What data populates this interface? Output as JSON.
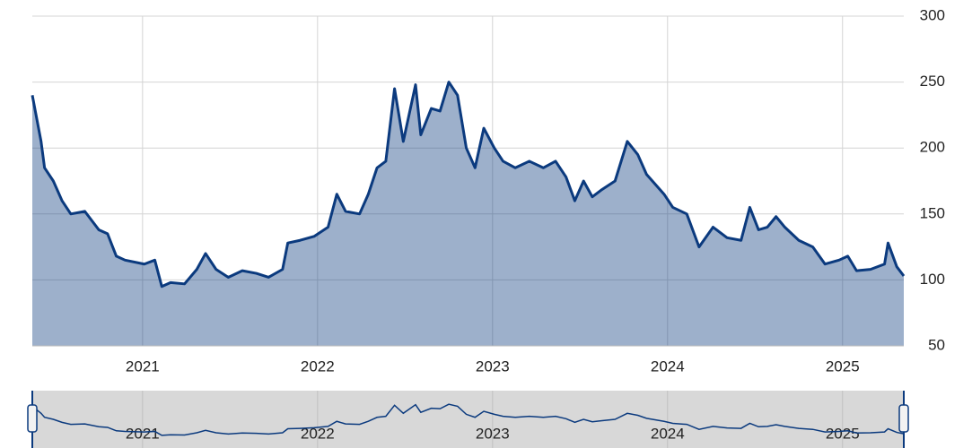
{
  "chart_data": {
    "type": "area",
    "x": [
      2020.37,
      2020.42,
      2020.44,
      2020.49,
      2020.54,
      2020.59,
      2020.67,
      2020.75,
      2020.8,
      2020.85,
      2020.9,
      2021.01,
      2021.07,
      2021.11,
      2021.16,
      2021.24,
      2021.31,
      2021.36,
      2021.42,
      2021.49,
      2021.57,
      2021.65,
      2021.72,
      2021.8,
      2021.83,
      2021.9,
      2021.98,
      2022.06,
      2022.11,
      2022.16,
      2022.24,
      2022.29,
      2022.34,
      2022.39,
      2022.44,
      2022.49,
      2022.56,
      2022.59,
      2022.65,
      2022.7,
      2022.75,
      2022.8,
      2022.85,
      2022.9,
      2022.95,
      2023.01,
      2023.06,
      2023.13,
      2023.21,
      2023.29,
      2023.36,
      2023.42,
      2023.47,
      2023.52,
      2023.57,
      2023.62,
      2023.7,
      2023.77,
      2023.83,
      2023.88,
      2023.98,
      2024.03,
      2024.11,
      2024.18,
      2024.26,
      2024.34,
      2024.42,
      2024.47,
      2024.52,
      2024.57,
      2024.62,
      2024.67,
      2024.75,
      2024.83,
      2024.9,
      2024.98,
      2025.03,
      2025.08,
      2025.16,
      2025.24,
      2025.26,
      2025.31,
      2025.35
    ],
    "series": [
      {
        "color": "#0b3a7e",
        "values": [
          240,
          205,
          185,
          175,
          160,
          150,
          152,
          138,
          135,
          118,
          115,
          112,
          115,
          95,
          98,
          97,
          108,
          120,
          108,
          102,
          107,
          105,
          102,
          108,
          128,
          130,
          133,
          140,
          165,
          152,
          150,
          165,
          185,
          190,
          245,
          205,
          248,
          210,
          230,
          228,
          250,
          240,
          200,
          185,
          215,
          200,
          190,
          185,
          190,
          185,
          190,
          178,
          160,
          175,
          163,
          168,
          175,
          205,
          195,
          180,
          165,
          155,
          150,
          125,
          140,
          132,
          130,
          155,
          138,
          140,
          148,
          140,
          130,
          125,
          112,
          115,
          118,
          107,
          108,
          112,
          128,
          110,
          103
        ]
      }
    ],
    "xlim": [
      2020.37,
      2025.35
    ],
    "xticks": [
      2021,
      2022,
      2023,
      2024,
      2025
    ],
    "ylim": [
      50,
      300
    ],
    "yticks": [
      50,
      100,
      150,
      200,
      250,
      300
    ],
    "grid": true
  }
}
